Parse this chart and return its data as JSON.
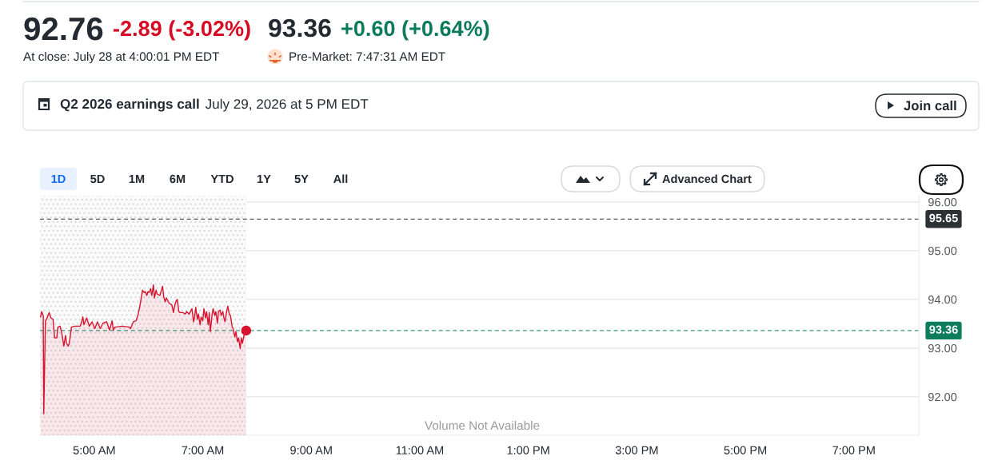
{
  "chart_data": {
    "type": "area",
    "annotations": [
      "92.76",
      "-2.89 (-3.02%)",
      "93.36",
      "+0.60 (+0.64%)",
      "At close: July 28 at 4:00:01 PM EDT",
      "Pre-Market: 7:47:31 AM EDT",
      "Q2 2026 earnings call",
      "July 29, 2026 at 5 PM EDT",
      "Join call",
      "1D",
      "5D",
      "1M",
      "6M",
      "YTD",
      "1Y",
      "5Y",
      "All",
      "Advanced Chart",
      "Volume Not Available"
    ],
    "series": [
      {
        "color": "#d7132d",
        "x": [
          4.01,
          4.03,
          4.06,
          4.07,
          4.1,
          4.12,
          4.17,
          4.2,
          4.24,
          4.27,
          4.31,
          4.33,
          4.37,
          4.4,
          4.44,
          4.47,
          4.49,
          4.52,
          4.54,
          4.58,
          4.64,
          4.74,
          4.76,
          4.79,
          4.81,
          4.86,
          4.91,
          4.96,
          5.01,
          5.06,
          5.11,
          5.16,
          5.23,
          5.28,
          5.33,
          5.35,
          5.38,
          5.52,
          5.65,
          5.67,
          5.72,
          5.77,
          5.81,
          5.84,
          5.89,
          5.92,
          5.94,
          5.97,
          5.99,
          6.01,
          6.04,
          6.06,
          6.09,
          6.11,
          6.14,
          6.16,
          6.21,
          6.26,
          6.28,
          6.31,
          6.33,
          6.38,
          6.43,
          6.46,
          6.48,
          6.51,
          6.53,
          6.56,
          6.58,
          6.63,
          6.68,
          6.7,
          6.75,
          6.8,
          6.83,
          6.85,
          6.87,
          6.9,
          6.92,
          6.95,
          6.97,
          7.0,
          7.02,
          7.05,
          7.07,
          7.1,
          7.12,
          7.14,
          7.17,
          7.19,
          7.22,
          7.24,
          7.27,
          7.29,
          7.32,
          7.34,
          7.37,
          7.39,
          7.41,
          7.44,
          7.46,
          7.49,
          7.51,
          7.54,
          7.56,
          7.59,
          7.61,
          7.64,
          7.66,
          7.69,
          7.71,
          7.73,
          7.76,
          7.78,
          7.8
        ],
        "values": [
          93.64,
          93.75,
          93.67,
          91.65,
          93.56,
          93.59,
          93.73,
          93.62,
          93.59,
          93.21,
          93.21,
          93.43,
          93.45,
          93.32,
          93.04,
          93.26,
          93.1,
          93.04,
          93.1,
          93.43,
          93.45,
          93.45,
          93.51,
          93.64,
          93.48,
          93.62,
          93.45,
          93.54,
          93.4,
          93.54,
          93.4,
          93.51,
          93.54,
          93.37,
          93.56,
          93.37,
          93.43,
          93.45,
          93.43,
          93.4,
          93.54,
          93.56,
          93.7,
          93.86,
          94.19,
          94.14,
          94.16,
          94.08,
          94.16,
          94.14,
          94.22,
          94.08,
          94.3,
          94.03,
          94.19,
          94.11,
          94.08,
          94.27,
          94.05,
          93.95,
          94.03,
          93.92,
          93.89,
          93.73,
          93.86,
          93.97,
          94.0,
          93.75,
          93.73,
          93.73,
          93.7,
          93.75,
          93.7,
          93.81,
          93.54,
          93.64,
          93.84,
          93.59,
          93.7,
          93.48,
          93.64,
          93.56,
          93.81,
          93.62,
          93.75,
          93.48,
          93.73,
          93.34,
          93.67,
          93.81,
          93.67,
          93.75,
          93.51,
          93.75,
          93.78,
          93.67,
          93.75,
          93.62,
          93.54,
          93.75,
          93.86,
          93.7,
          93.67,
          93.45,
          93.4,
          93.23,
          93.34,
          93.13,
          93.21,
          92.99,
          93.21,
          93.1,
          93.26,
          93.32,
          93.36
        ]
      },
      {
        "type": "scatter",
        "color": "#d7132d",
        "marker": "circle",
        "x": [
          7.8
        ],
        "values": [
          93.36
        ]
      }
    ],
    "xlim": [
      4,
      20.2
    ],
    "ylim": [
      91.21,
      96.13
    ],
    "xticks": [
      {
        "value": 5,
        "label": "5:00 AM"
      },
      {
        "value": 7,
        "label": "7:00 AM"
      },
      {
        "value": 9,
        "label": "9:00 AM"
      },
      {
        "value": 11,
        "label": "11:00 AM"
      },
      {
        "value": 13,
        "label": "1:00 PM"
      },
      {
        "value": 15,
        "label": "3:00 PM"
      },
      {
        "value": 17,
        "label": "5:00 PM"
      },
      {
        "value": 19,
        "label": "7:00 PM"
      }
    ],
    "yticks": [
      {
        "value": 92,
        "label": "92.00"
      },
      {
        "value": 93,
        "label": "93.00"
      },
      {
        "value": 94,
        "label": "94.00"
      },
      {
        "value": 95,
        "label": "95.00"
      },
      {
        "value": 96,
        "label": "96.00"
      }
    ],
    "ref_lines": [
      {
        "axis": "y",
        "value": 95.65,
        "label": "95.65",
        "color": "#2c3136",
        "line_style": "dashed"
      },
      {
        "axis": "y",
        "value": 93.36,
        "label": "93.36",
        "color": "#0d7d5c",
        "line_style": "dashed"
      }
    ],
    "bands": [
      {
        "axis": "x",
        "from": 4,
        "to": 7.8,
        "color": "#dcdcdc"
      }
    ],
    "grid": "y",
    "marker": "none",
    "line_style": "solid"
  }
}
